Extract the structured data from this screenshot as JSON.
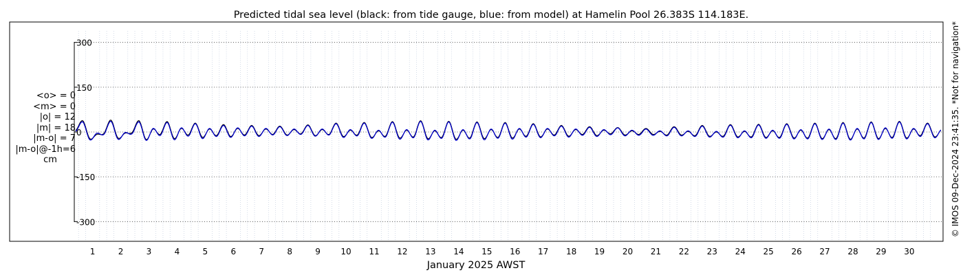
{
  "chart_data": {
    "type": "line",
    "title": "Predicted tidal sea level (black: from tide gauge, blue: from model) at Hamelin Pool 26.383S 114.183E.",
    "xlabel": "January 2025 AWST",
    "ylabel": "",
    "xlim": [
      0.35,
      31.2
    ],
    "ylim": [
      -320,
      320
    ],
    "yticks": [
      300,
      150,
      0,
      -150,
      -300
    ],
    "xticks": [
      1,
      2,
      3,
      4,
      5,
      6,
      7,
      8,
      9,
      10,
      11,
      12,
      13,
      14,
      15,
      16,
      17,
      18,
      19,
      20,
      21,
      22,
      23,
      24,
      25,
      26,
      27,
      28,
      29,
      30
    ],
    "grid": true,
    "series": [
      {
        "color": "#000000",
        "points_per_day": 4,
        "x_start": 0.4,
        "values": [
          5,
          38,
          -22,
          -8,
          -5,
          40,
          -20,
          -4,
          -2,
          38,
          -25,
          10,
          -8,
          35,
          -22,
          12,
          -10,
          30,
          -18,
          10,
          -12,
          25,
          -15,
          12,
          -10,
          22,
          -12,
          10,
          -8,
          20,
          -10,
          8,
          -6,
          24,
          -12,
          8,
          -8,
          30,
          -15,
          6,
          -10,
          32,
          -18,
          4,
          -14,
          35,
          -20,
          6,
          -16,
          38,
          -22,
          4,
          -18,
          36,
          -24,
          6,
          -20,
          34,
          -22,
          8,
          -18,
          32,
          -20,
          10,
          -14,
          28,
          -16,
          10,
          -10,
          22,
          -14,
          8,
          -8,
          18,
          -12,
          6,
          -6,
          15,
          -10,
          4,
          -8,
          12,
          -8,
          2,
          -10,
          18,
          -10,
          2,
          -12,
          22,
          -14,
          0,
          -14,
          25,
          -16,
          2,
          -16,
          26,
          -18,
          4,
          -18,
          28,
          -20,
          6,
          -20,
          30,
          -22,
          8,
          -22,
          32,
          -24,
          10,
          -20,
          34,
          -22,
          12,
          -18,
          36,
          -20,
          10,
          -12,
          30,
          -16,
          8
        ],
        "name": ""
      },
      {
        "color": "#0000cc",
        "points_per_day": 4,
        "x_start": 0.4,
        "values": [
          2,
          34,
          -26,
          -4,
          -8,
          36,
          -24,
          -2,
          -6,
          34,
          -28,
          12,
          -12,
          32,
          -26,
          14,
          -14,
          28,
          -22,
          12,
          -15,
          22,
          -18,
          14,
          -13,
          20,
          -15,
          12,
          -10,
          18,
          -12,
          10,
          -8,
          22,
          -14,
          10,
          -10,
          28,
          -18,
          8,
          -13,
          30,
          -21,
          6,
          -17,
          33,
          -24,
          8,
          -19,
          36,
          -26,
          6,
          -21,
          34,
          -28,
          8,
          -23,
          32,
          -26,
          10,
          -21,
          30,
          -24,
          12,
          -17,
          26,
          -19,
          12,
          -13,
          20,
          -17,
          10,
          -11,
          16,
          -15,
          8,
          -9,
          14,
          -13,
          6,
          -11,
          10,
          -11,
          4,
          -13,
          16,
          -13,
          4,
          -15,
          20,
          -17,
          2,
          -17,
          23,
          -19,
          4,
          -19,
          24,
          -21,
          6,
          -21,
          26,
          -23,
          8,
          -23,
          28,
          -25,
          10,
          -25,
          30,
          -27,
          12,
          -23,
          32,
          -25,
          14,
          -21,
          34,
          -23,
          12,
          -15,
          28,
          -19,
          10
        ],
        "name": ""
      }
    ]
  },
  "stats": {
    "lines": [
      "<o> = 0",
      "<m> = 0",
      "|o| = 12",
      "|m| = 18",
      "|m-o| = 7",
      "|m-o|@-1h=6",
      "cm"
    ]
  },
  "side_note": "© IMOS 09-Dec-2024 23:41:35. *Not for navigation*",
  "colors": {
    "grid": "#8c8c8c",
    "minor_grid": "#b8c4d8"
  }
}
